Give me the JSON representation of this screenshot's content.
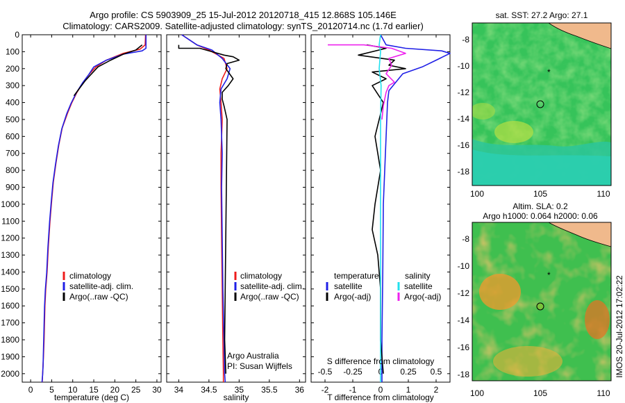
{
  "header": {
    "line1": "Argo profile: CS 5903909_25 15-Jul-2012 20120718_415 12.868S 105.146E",
    "line2": "Climatology: CARS2009. Satellite-adjusted climatology: synTS_20120714.nc (1.7d earlier)"
  },
  "side_stamp": "IMOS 20-Jul-2012 17:02:22",
  "colors": {
    "climatology": "#ee1c1c",
    "satellite": "#1f1fe6",
    "argo": "#000000",
    "sal_satellite": "#22e0ee",
    "sal_argo": "#ee22ee"
  },
  "chart_data": [
    {
      "type": "line",
      "panel": "temperature",
      "xlabel": "temperature (deg C)",
      "ylabel": "",
      "xlim": [
        -2,
        31
      ],
      "ylim": [
        2050,
        0
      ],
      "xticks": [
        "0",
        "5",
        "10",
        "15",
        "20",
        "25",
        "30"
      ],
      "yticks": [
        "0",
        "100",
        "200",
        "300",
        "400",
        "500",
        "600",
        "700",
        "800",
        "900",
        "1000",
        "1100",
        "1200",
        "1300",
        "1400",
        "1500",
        "1600",
        "1700",
        "1800",
        "1900",
        "2000"
      ],
      "legend": [
        "climatology",
        "satellite-adj. clim.",
        "Argo(..raw -QC)"
      ],
      "series": [
        {
          "name": "climatology",
          "x": [
            27.3,
            27.2,
            26,
            22,
            18,
            15.5,
            14,
            12.5,
            11,
            9.8,
            8.8,
            7.5,
            6.7,
            6,
            5.4,
            5,
            4.6,
            4.2,
            3.9,
            3.6,
            3.4,
            3.3,
            3.2,
            3.05,
            2.95,
            2.85,
            2.75
          ],
          "y": [
            0,
            60,
            85,
            110,
            150,
            190,
            230,
            280,
            340,
            400,
            460,
            550,
            650,
            760,
            870,
            980,
            1100,
            1250,
            1400,
            1500,
            1600,
            1700,
            1800,
            1900,
            1950,
            2000,
            2050
          ]
        },
        {
          "name": "satellite-adj. clim.",
          "x": [
            27.4,
            27.4,
            26.5,
            22,
            18,
            15,
            13.8,
            12.3,
            10.8,
            9.6,
            8.6,
            7.4,
            6.6,
            5.9,
            5.3,
            4.9,
            4.5,
            4.1,
            3.8,
            3.5,
            3.3,
            3.2,
            3.1,
            3.0,
            2.95,
            2.85,
            2.7
          ],
          "y": [
            0,
            80,
            95,
            115,
            150,
            190,
            235,
            285,
            345,
            405,
            465,
            555,
            655,
            765,
            875,
            985,
            1105,
            1255,
            1405,
            1505,
            1605,
            1705,
            1805,
            1905,
            1955,
            2005,
            2050
          ]
        },
        {
          "name": "Argo(..raw -QC)",
          "x": [
            26.5,
            25,
            22,
            19,
            16,
            14.5,
            13,
            11.5,
            10.3
          ],
          "y": [
            60,
            90,
            115,
            150,
            190,
            230,
            270,
            320,
            360
          ]
        }
      ]
    },
    {
      "type": "line",
      "panel": "salinity",
      "xlabel": "salinity",
      "xlim": [
        33.8,
        36.1
      ],
      "ylim": [
        2050,
        0
      ],
      "xticks": [
        "34",
        "34.5",
        "35",
        "35.5",
        "36"
      ],
      "legend": [
        "climatology",
        "satellite-adj. clim.",
        "Argo(..raw -QC)"
      ],
      "annotation": [
        "Argo Australia",
        "PI: Susan Wijffels"
      ],
      "series": [
        {
          "name": "climatology",
          "x": [
            34.05,
            34.3,
            34.5,
            34.75,
            34.8,
            34.72,
            34.68,
            34.7,
            34.72,
            34.7,
            34.7,
            34.71,
            34.72,
            34.73,
            34.74,
            34.74
          ],
          "y": [
            0,
            60,
            90,
            140,
            200,
            260,
            320,
            400,
            500,
            700,
            900,
            1200,
            1500,
            1800,
            2000,
            2050
          ]
        },
        {
          "name": "satellite-adj. clim.",
          "x": [
            34.05,
            34.3,
            34.55,
            34.72,
            34.85,
            34.8,
            34.7,
            34.68,
            34.7,
            34.72,
            34.71,
            34.72,
            34.73,
            34.75,
            34.76,
            34.77
          ],
          "y": [
            0,
            60,
            90,
            140,
            200,
            260,
            320,
            400,
            500,
            700,
            900,
            1200,
            1500,
            1800,
            2000,
            2050
          ]
        },
        {
          "name": "Argo(..raw -QC)",
          "x": [
            34.0,
            34.0,
            34.35,
            34.55,
            34.75,
            34.9,
            35.0,
            34.8,
            34.78,
            34.9,
            34.82,
            34.72,
            34.72,
            34.75,
            34.8,
            34.76,
            34.78
          ],
          "y": [
            60,
            80,
            80,
            100,
            120,
            130,
            150,
            170,
            200,
            260,
            300,
            340,
            380,
            420,
            500,
            1800,
            2000
          ]
        }
      ]
    },
    {
      "type": "line",
      "panel": "differences",
      "xlabel": "T difference from climatology",
      "xlabel_top": "S difference from climatology",
      "xlim": [
        -2.5,
        2.5
      ],
      "ylim": [
        2050,
        0
      ],
      "xticks": [
        "-2",
        "-1",
        "0",
        "1",
        "2"
      ],
      "xticks_top": [
        "-0.5",
        "-0.25",
        "0",
        "0.25",
        "0.5"
      ],
      "legend_temperature": [
        "temperature",
        "satellite",
        "Argo(-adj)"
      ],
      "legend_salinity": [
        "salinity",
        "satellite",
        "Argo(-adj)"
      ],
      "series": [
        {
          "name": "satellite",
          "x": [
            0,
            0.2,
            0.9,
            2.2,
            2.5,
            2.0,
            1.5,
            0.8,
            0.6,
            0.3,
            0.25,
            0.2,
            0.15,
            0.1,
            0.08,
            0.05,
            0.05
          ],
          "y": [
            0,
            60,
            80,
            95,
            110,
            150,
            190,
            230,
            270,
            330,
            400,
            600,
            800,
            1000,
            1400,
            1800,
            2050
          ]
        },
        {
          "name": "Argo(-adj)",
          "x": [
            -0.5,
            0.2,
            -0.8,
            0.5,
            0.3,
            0.9,
            -0.3,
            0.2,
            -0.3,
            0.1,
            -0.2,
            0.0,
            -0.2,
            -0.3,
            -0.1,
            0.0,
            0.0,
            0.1
          ],
          "y": [
            60,
            80,
            120,
            150,
            180,
            200,
            220,
            260,
            300,
            400,
            600,
            800,
            1000,
            1150,
            1300,
            1500,
            1800,
            2000
          ]
        },
        {
          "name": "sal_satellite",
          "x": [
            0.0,
            -0.05,
            0.0,
            -0.05,
            0.02,
            0.0,
            0.0,
            0.0,
            0.0
          ],
          "y": [
            0,
            60,
            100,
            200,
            300,
            500,
            1000,
            1500,
            2050
          ]
        },
        {
          "name": "sal_argo",
          "x": [
            -1.9,
            -0.6,
            0.4,
            0.9,
            0.3,
            0.4,
            0.2,
            0.5,
            0.3,
            0.2,
            0.1,
            0.05
          ],
          "y": [
            60,
            60,
            80,
            110,
            140,
            180,
            230,
            280,
            300,
            340,
            420,
            500
          ]
        }
      ]
    },
    {
      "type": "heatmap",
      "panel": "sst_map",
      "title": "sat. SST: 27.2  Argo: 27.1",
      "xticks": [
        "100",
        "105",
        "110"
      ],
      "yticks": [
        "-8",
        "-10",
        "-12",
        "-14",
        "-16",
        "-18"
      ]
    },
    {
      "type": "heatmap",
      "panel": "sla_map",
      "title_lines": [
        "Altim. SLA: 0.2",
        "Argo h1000: 0.064 h2000: 0.06"
      ],
      "xticks": [
        "100",
        "105",
        "110"
      ],
      "yticks": [
        "-8",
        "-10",
        "-12",
        "-14",
        "-16",
        "-18"
      ]
    }
  ]
}
